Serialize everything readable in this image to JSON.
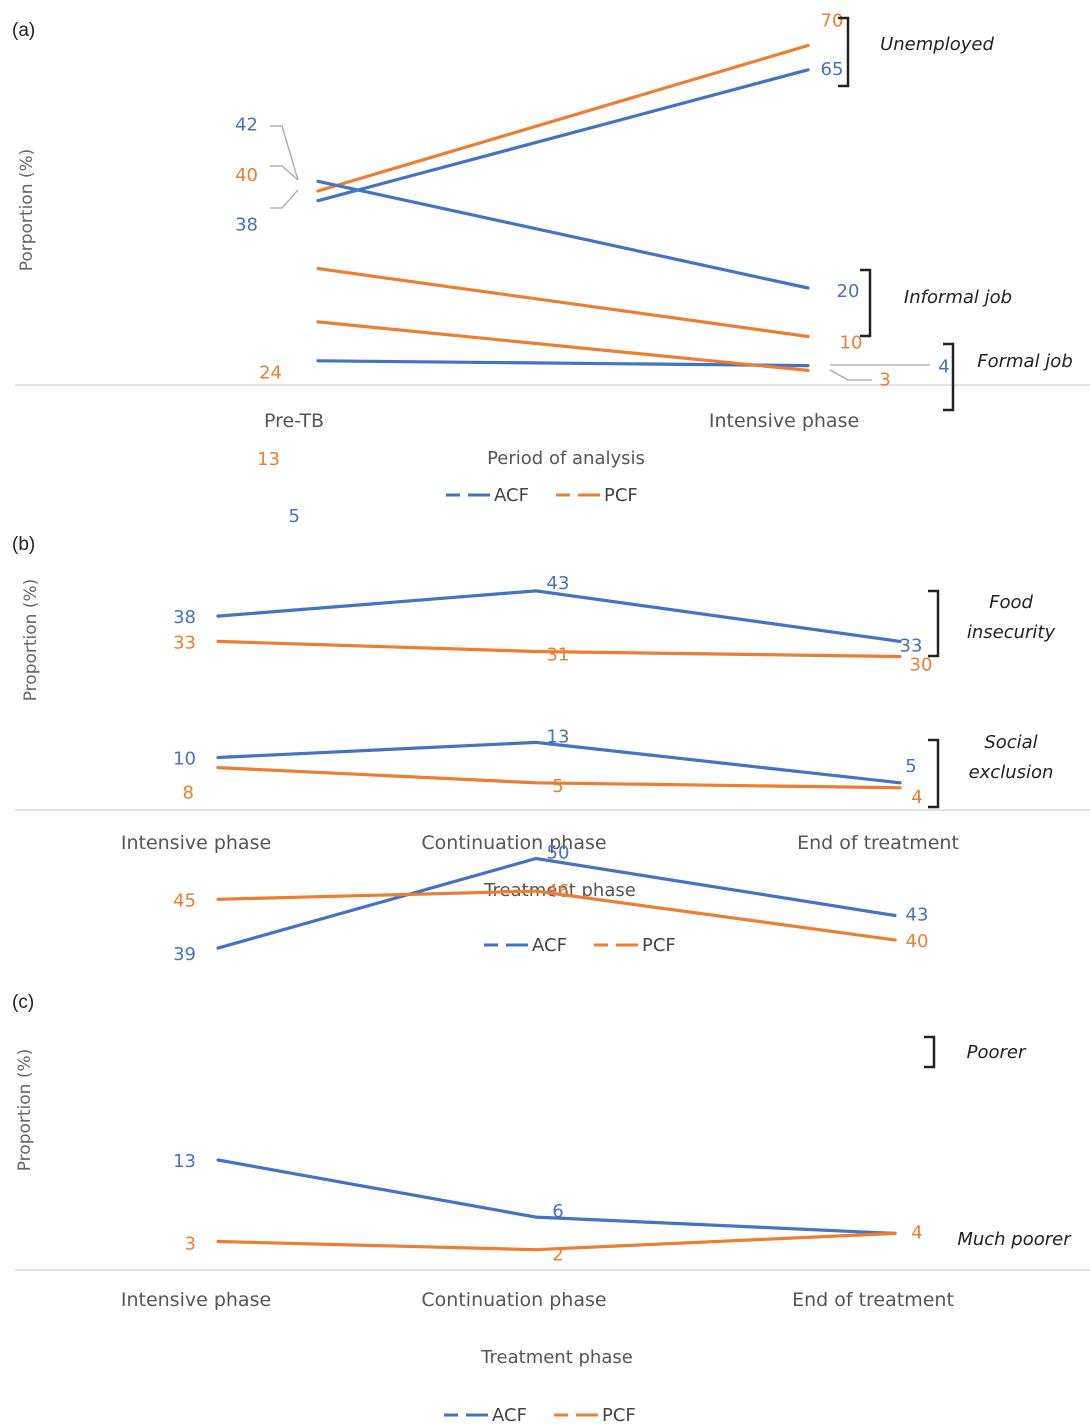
{
  "colors": {
    "ACF": "#4472c4",
    "PCF": "#ed7d31"
  },
  "legend": [
    "ACF",
    "PCF"
  ],
  "chart_data": [
    {
      "panel_label": "(a)",
      "type": "line",
      "ylabel": "Porportion (%)",
      "xlabel": "Period of analysis",
      "categories": [
        "Pre-TB",
        "Intensive phase"
      ],
      "series": [
        {
          "name": "ACF",
          "group": "Unemployed",
          "values": [
            38,
            65
          ]
        },
        {
          "name": "PCF",
          "group": "Unemployed",
          "values": [
            40,
            70
          ]
        },
        {
          "name": "ACF",
          "group": "Informal job",
          "values": [
            42,
            20
          ]
        },
        {
          "name": "PCF",
          "group": "Informal job",
          "values": [
            24,
            10
          ]
        },
        {
          "name": "ACF",
          "group": "Formal job",
          "values": [
            5,
            4
          ]
        },
        {
          "name": "PCF",
          "group": "Formal job",
          "values": [
            13,
            3
          ]
        }
      ],
      "group_labels": [
        "Unemployed",
        "Informal job",
        "Formal job"
      ]
    },
    {
      "panel_label": "(b)",
      "type": "line",
      "ylabel": "Proportion (%)",
      "xlabel": "Treatment phase",
      "categories": [
        "Intensive phase",
        "Continuation phase",
        "End of treatment"
      ],
      "series": [
        {
          "name": "ACF",
          "group": "Food insecurity",
          "values": [
            38,
            43,
            33
          ]
        },
        {
          "name": "PCF",
          "group": "Food insecurity",
          "values": [
            33,
            31,
            30
          ]
        },
        {
          "name": "ACF",
          "group": "Social exclusion",
          "values": [
            10,
            13,
            5
          ]
        },
        {
          "name": "PCF",
          "group": "Social exclusion",
          "values": [
            8,
            5,
            4
          ]
        }
      ],
      "group_labels": [
        [
          "Food",
          "insecurity"
        ],
        [
          "Social",
          "exclusion"
        ]
      ]
    },
    {
      "panel_label": "(c)",
      "type": "line",
      "ylabel": "Proportion (%)",
      "xlabel": "Treatment phase",
      "categories": [
        "Intensive phase",
        "Continuation phase",
        "End of treatment"
      ],
      "series": [
        {
          "name": "ACF",
          "group": "Poorer",
          "values": [
            39,
            50,
            43
          ]
        },
        {
          "name": "PCF",
          "group": "Poorer",
          "values": [
            45,
            46,
            40
          ]
        },
        {
          "name": "ACF",
          "group": "Much poorer",
          "values": [
            13,
            6,
            4
          ]
        },
        {
          "name": "PCF",
          "group": "Much poorer",
          "values": [
            3,
            2,
            4
          ]
        }
      ],
      "group_labels": [
        "Poorer",
        "Much poorer"
      ]
    }
  ]
}
